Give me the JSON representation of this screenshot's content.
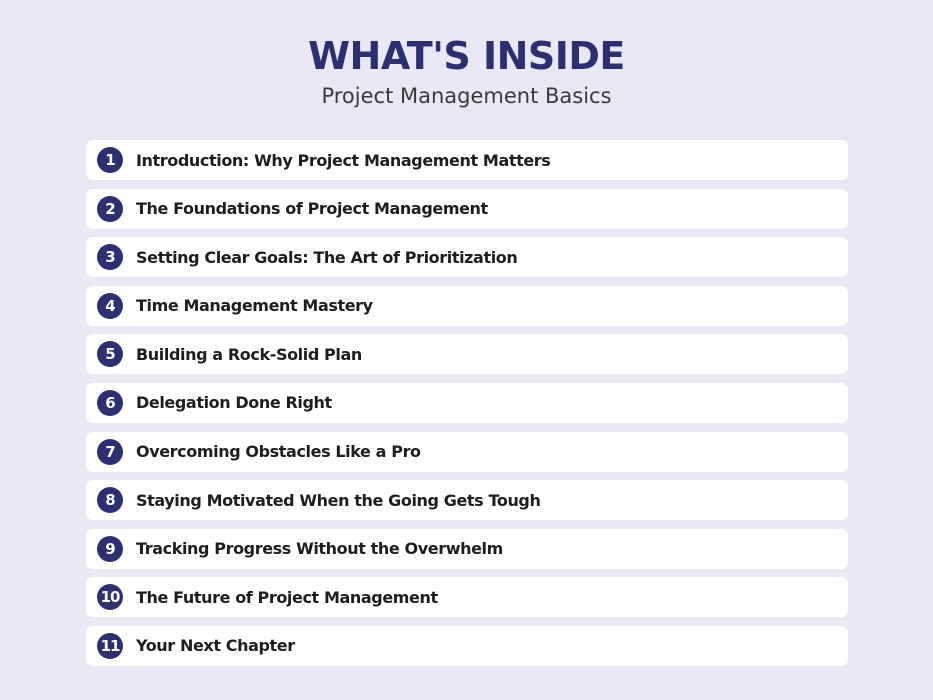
{
  "header": {
    "title": "WHAT'S INSIDE",
    "subtitle": "Project Management Basics"
  },
  "items": [
    {
      "number": 1,
      "label": "Introduction: Why Project Management Matters"
    },
    {
      "number": 2,
      "label": "The Foundations of Project Management"
    },
    {
      "number": 3,
      "label": "Setting Clear Goals: The Art of Prioritization"
    },
    {
      "number": 4,
      "label": "Time Management Mastery"
    },
    {
      "number": 5,
      "label": "Building a Rock-Solid Plan"
    },
    {
      "number": 6,
      "label": "Delegation Done Right"
    },
    {
      "number": 7,
      "label": "Overcoming Obstacles Like a Pro"
    },
    {
      "number": 8,
      "label": "Staying Motivated When the Going Gets Tough"
    },
    {
      "number": 9,
      "label": "Tracking Progress Without the Overwhelm"
    },
    {
      "number": 10,
      "label": "The Future of Project Management"
    },
    {
      "number": 11,
      "label": "Your Next Chapter"
    }
  ]
}
